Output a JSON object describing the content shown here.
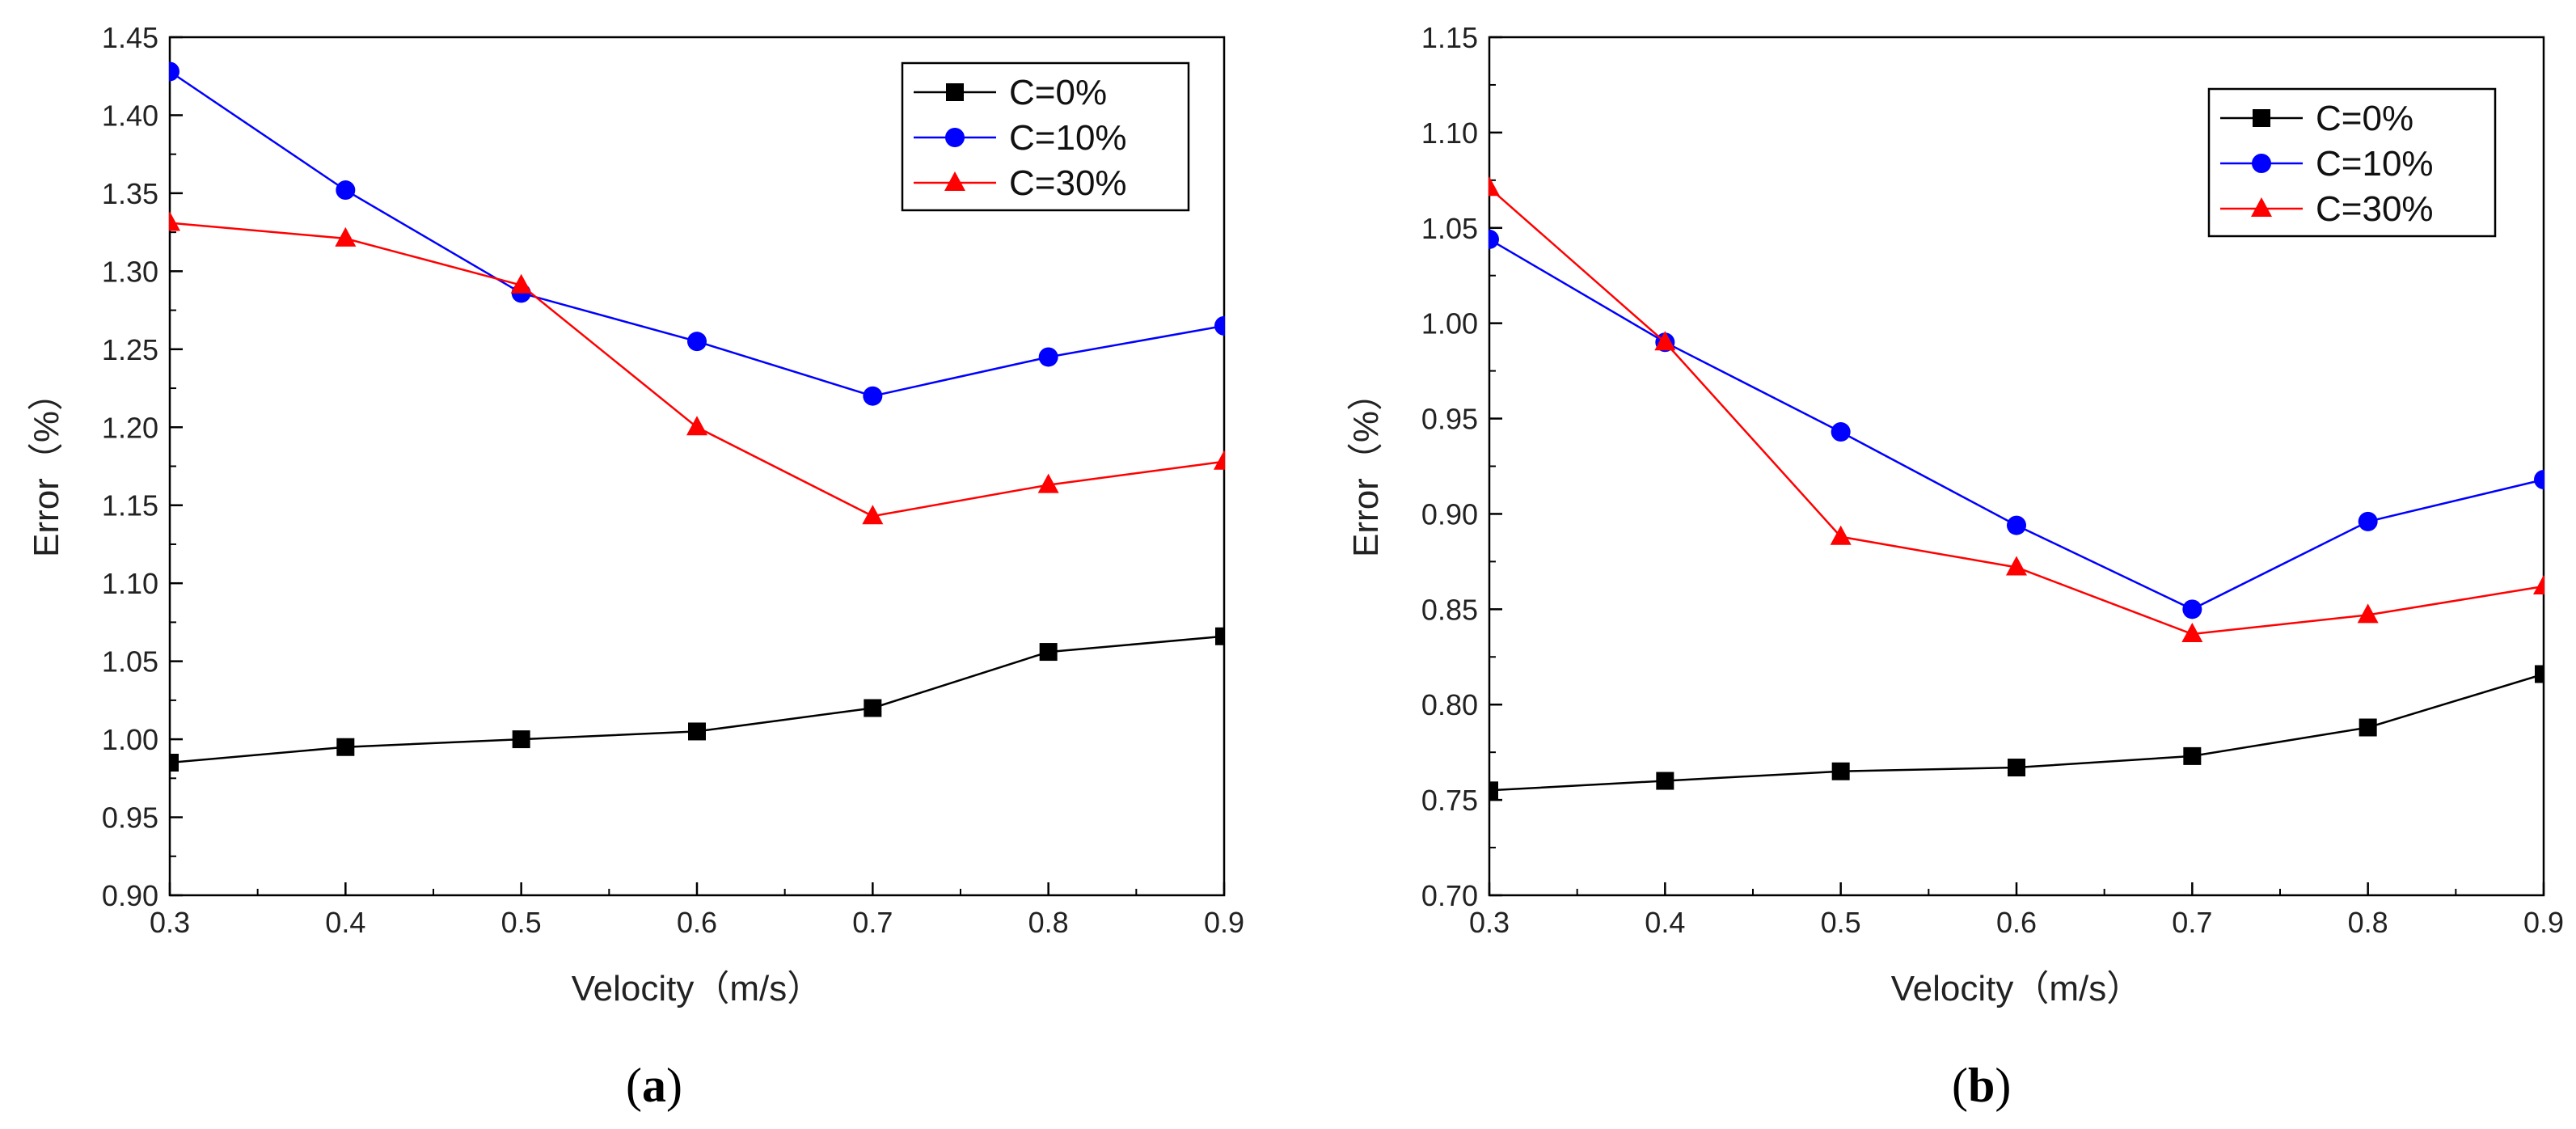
{
  "chart_data": [
    {
      "type": "line",
      "panel_label": "a",
      "xlabel": "Velocity（m/s）",
      "ylabel": "Error（%）",
      "x": [
        0.3,
        0.4,
        0.5,
        0.6,
        0.7,
        0.8,
        0.9
      ],
      "xlim": [
        0.3,
        0.9
      ],
      "ylim": [
        0.9,
        1.45
      ],
      "xticks": [
        "0.3",
        "0.4",
        "0.5",
        "0.6",
        "0.7",
        "0.8",
        "0.9"
      ],
      "yticks": [
        "0.90",
        "0.95",
        "1.00",
        "1.05",
        "1.10",
        "1.15",
        "1.20",
        "1.25",
        "1.30",
        "1.35",
        "1.40",
        "1.45"
      ],
      "legend_position": "top-right",
      "series": [
        {
          "name": "C=0%",
          "color": "#000000",
          "marker": "square",
          "values": [
            0.985,
            0.995,
            1.0,
            1.005,
            1.02,
            1.056,
            1.066
          ]
        },
        {
          "name": "C=10%",
          "color": "#0000ff",
          "marker": "circle",
          "values": [
            1.428,
            1.352,
            1.286,
            1.255,
            1.22,
            1.245,
            1.265
          ]
        },
        {
          "name": "C=30%",
          "color": "#ff0000",
          "marker": "triangle",
          "values": [
            1.331,
            1.321,
            1.291,
            1.2,
            1.143,
            1.163,
            1.178
          ]
        }
      ]
    },
    {
      "type": "line",
      "panel_label": "b",
      "xlabel": "Velocity（m/s）",
      "ylabel": "Error（%）",
      "x": [
        0.3,
        0.4,
        0.5,
        0.6,
        0.7,
        0.8,
        0.9
      ],
      "xlim": [
        0.3,
        0.9
      ],
      "ylim": [
        0.7,
        1.15
      ],
      "xticks": [
        "0.3",
        "0.4",
        "0.5",
        "0.6",
        "0.7",
        "0.8",
        "0.9"
      ],
      "yticks": [
        "0.70",
        "0.75",
        "0.80",
        "0.85",
        "0.90",
        "0.95",
        "1.00",
        "1.05",
        "1.10",
        "1.15"
      ],
      "legend_position": "top-right",
      "series": [
        {
          "name": "C=0%",
          "color": "#000000",
          "marker": "square",
          "values": [
            0.755,
            0.76,
            0.765,
            0.767,
            0.773,
            0.788,
            0.816
          ]
        },
        {
          "name": "C=10%",
          "color": "#0000ff",
          "marker": "circle",
          "values": [
            1.044,
            0.99,
            0.943,
            0.894,
            0.85,
            0.896,
            0.918
          ]
        },
        {
          "name": "C=30%",
          "color": "#ff0000",
          "marker": "triangle",
          "values": [
            1.071,
            0.99,
            0.888,
            0.872,
            0.837,
            0.847,
            0.862
          ]
        }
      ]
    }
  ]
}
